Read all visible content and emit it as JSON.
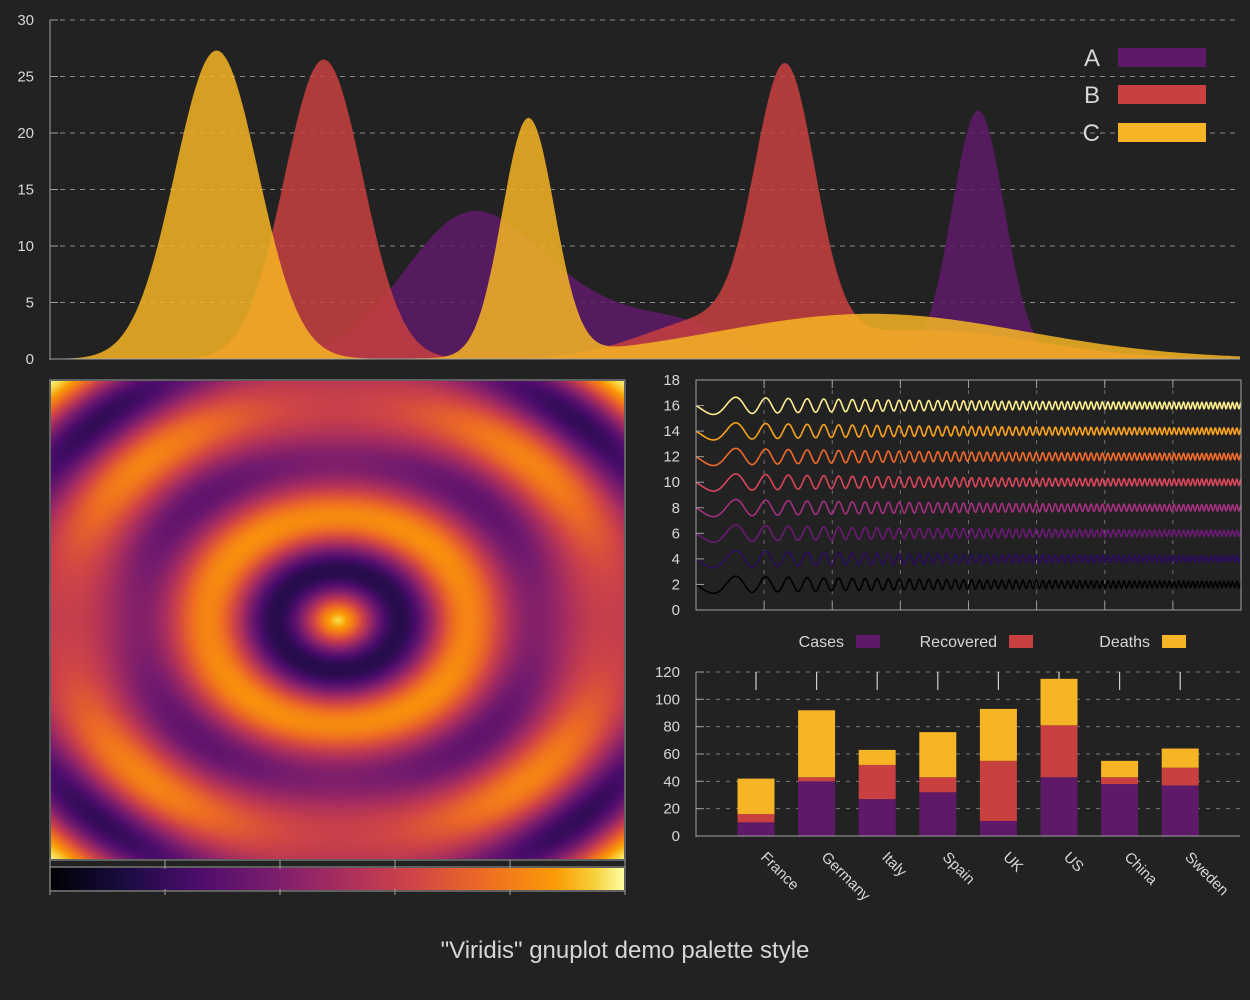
{
  "caption": "\"Viridis\" gnuplot demo palette style",
  "colors": {
    "background": "#222222",
    "axis": "#a0a0a0",
    "text": "#d6d6d6",
    "series_A": "#5e1a68",
    "series_B": "#c8403f",
    "series_C": "#f6b525"
  },
  "chart_data": [
    {
      "id": "top",
      "type": "area",
      "ylim": [
        0,
        30
      ],
      "yticks": [
        "0",
        "5",
        "10",
        "15",
        "20",
        "25",
        "30"
      ],
      "xlim": [
        0,
        1000
      ],
      "grid": "horizontal dashed",
      "legend_placement": "top-right",
      "series": [
        {
          "name": "A",
          "components": [
            {
              "amp": 12.0,
              "center": 350,
              "sigma": 55
            },
            {
              "amp": 4.0,
              "center": 450,
              "sigma": 60
            },
            {
              "amp": 2.0,
              "center": 540,
              "sigma": 40
            },
            {
              "amp": 22.0,
              "center": 780,
              "sigma": 22
            }
          ]
        },
        {
          "name": "B",
          "components": [
            {
              "amp": 26.5,
              "center": 230,
              "sigma": 33
            },
            {
              "amp": 23.0,
              "center": 618,
              "sigma": 25
            },
            {
              "amp": 3.5,
              "center": 560,
              "sigma": 60
            },
            {
              "amp": 2.5,
              "center": 740,
              "sigma": 90
            }
          ]
        },
        {
          "name": "C",
          "components": [
            {
              "amp": 27.3,
              "center": 140,
              "sigma": 35
            },
            {
              "amp": 21.0,
              "center": 402,
              "sigma": 22
            },
            {
              "amp": 4.0,
              "center": 690,
              "sigma": 130
            }
          ]
        }
      ]
    },
    {
      "id": "heatmap",
      "type": "heatmap",
      "colorbar": "inferno"
    },
    {
      "id": "lines",
      "type": "line",
      "ylim": [
        0,
        18
      ],
      "yticks": [
        "0",
        "2",
        "4",
        "6",
        "8",
        "10",
        "12",
        "14",
        "16",
        "18"
      ],
      "offsets": [
        2,
        4,
        6,
        8,
        10,
        12,
        14,
        16
      ],
      "colors": [
        "#000000",
        "#2b0b5c",
        "#6a1a73",
        "#a3307e",
        "#d9455a",
        "#f06a2a",
        "#f9a21e",
        "#fcee8f"
      ]
    },
    {
      "id": "bars",
      "type": "bar",
      "stacked": true,
      "categories": [
        "France",
        "Germany",
        "Italy",
        "Spain",
        "UK",
        "US",
        "China",
        "Sweden"
      ],
      "series": [
        {
          "name": "Cases",
          "values": [
            10,
            40,
            27,
            32,
            11,
            43,
            38,
            37
          ]
        },
        {
          "name": "Recovered",
          "values": [
            6,
            3,
            25,
            11,
            44,
            38,
            5,
            13
          ]
        },
        {
          "name": "Deaths",
          "values": [
            26,
            49,
            11,
            33,
            38,
            34,
            12,
            14
          ]
        }
      ],
      "ylim": [
        0,
        120
      ],
      "yticks": [
        "0",
        "20",
        "40",
        "60",
        "80",
        "100",
        "120"
      ],
      "legend_placement": "top"
    }
  ]
}
